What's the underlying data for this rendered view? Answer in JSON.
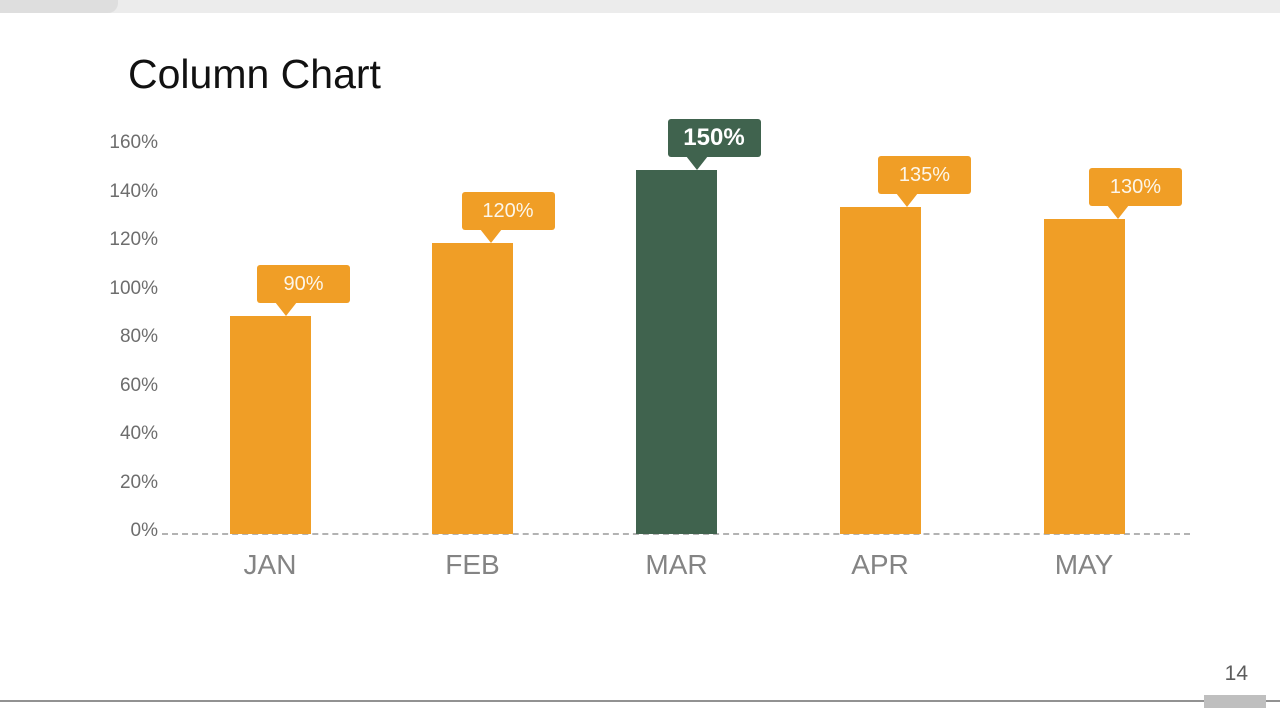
{
  "page": {
    "title": "Column Chart",
    "page_number": "14"
  },
  "chart_data": {
    "type": "bar",
    "title": "Column Chart",
    "xlabel": "",
    "ylabel": "",
    "categories": [
      "JAN",
      "FEB",
      "MAR",
      "APR",
      "MAY"
    ],
    "values": [
      90,
      120,
      150,
      135,
      130
    ],
    "data_labels": [
      "90%",
      "120%",
      "150%",
      "135%",
      "130%"
    ],
    "highlight_index": 2,
    "y_ticks": [
      0,
      20,
      40,
      60,
      80,
      100,
      120,
      140,
      160
    ],
    "y_tick_labels": [
      "0%",
      "20%",
      "40%",
      "60%",
      "80%",
      "100%",
      "120%",
      "140%",
      "160%"
    ],
    "ylim": [
      0,
      160
    ],
    "grid": false,
    "legend": "none",
    "baseline_style": "dashed",
    "colors": {
      "bar": "#F09E26",
      "highlight_bar": "#40634E",
      "callout_text": "#FCF6EA",
      "highlight_callout_text": "#FFFFFF",
      "axis_text": "#6D6D6D",
      "category_text": "#848484"
    }
  }
}
